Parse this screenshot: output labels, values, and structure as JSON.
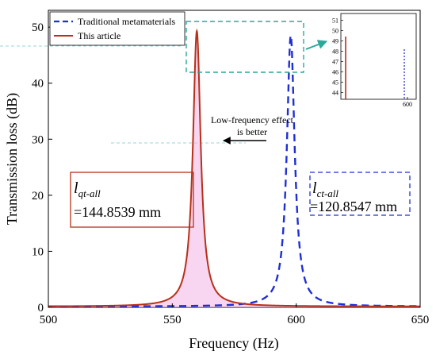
{
  "chart_data": {
    "type": "line",
    "xlabel": "Frequency (Hz)",
    "ylabel": "Transmission loss (dB)",
    "xlim": [
      500,
      650
    ],
    "ylim": [
      0,
      53
    ],
    "xticks": [
      "500",
      "550",
      "600",
      "650"
    ],
    "yticks": [
      "0",
      "10",
      "20",
      "30",
      "40",
      "50"
    ],
    "legend": {
      "placement": "top-left"
    },
    "series": [
      {
        "name": "Traditional metamaterials",
        "style": "dashed",
        "color": "#1f2fd6",
        "resonance": 597.8,
        "peak": 48.5,
        "gamma": 1.9,
        "baseline": 0.15,
        "x": [
          500,
          520,
          540,
          560,
          570,
          580,
          585,
          590,
          593,
          595,
          596,
          597,
          597.8,
          598.5,
          600,
          602,
          605,
          610,
          620,
          630,
          640,
          650
        ],
        "y": [
          0.25,
          0.35,
          0.55,
          1.1,
          1.8,
          3.3,
          5.2,
          9.5,
          16,
          24,
          31,
          42,
          48.5,
          40,
          22,
          12,
          6.5,
          3.4,
          1.7,
          1.1,
          0.8,
          0.6
        ]
      },
      {
        "name": "This article",
        "style": "solid",
        "color": "#b83018",
        "resonance": 559.9,
        "peak": 49.3,
        "gamma": 1.9,
        "baseline": 0.15,
        "x": [
          500,
          520,
          540,
          550,
          555,
          557,
          558,
          559,
          559.9,
          561,
          562,
          564,
          567,
          570,
          580,
          590,
          600,
          620,
          650
        ],
        "y": [
          0.35,
          0.6,
          1.5,
          3.6,
          9,
          16,
          24,
          38,
          49.3,
          38,
          24,
          12,
          6,
          3.6,
          1.5,
          0.85,
          0.55,
          0.3,
          0.2
        ]
      }
    ],
    "annotations": {
      "arrow_text_line1": "Low-frequency effect",
      "arrow_text_line2": "is better",
      "box_left": {
        "symbol": "l",
        "subscript": "qt-all",
        "value": "=144.8539 mm"
      },
      "box_right": {
        "symbol": "l",
        "subscript": "ct-all",
        "value": "=120.8547 mm"
      }
    },
    "inset": {
      "ylim": [
        43.5,
        51.5
      ],
      "yticks": [
        "44",
        "45",
        "46",
        "47",
        "48",
        "49",
        "50",
        "51"
      ],
      "xtick": "600"
    }
  },
  "colors": {
    "blue": "#1f2fd6",
    "red": "#b83018",
    "teal": "#2aa89a",
    "fill": "#f3b3e3"
  }
}
